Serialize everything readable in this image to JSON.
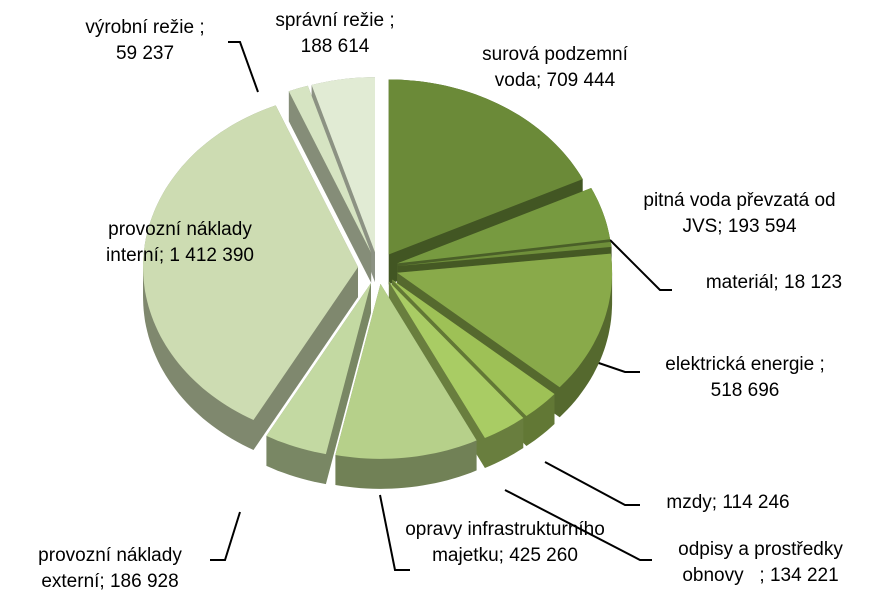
{
  "chart_data": {
    "type": "pie3d",
    "categories": [
      "surová podzemní voda;",
      "pitná voda převzatá od JVS;",
      "materiál;",
      "elektrická energie ;",
      "mzdy;",
      "odpisy a prostředky obnovy   ;",
      "opravy infrastrukturního majetku;",
      "provozní náklady externí;",
      "provozní náklady interní;",
      "výrobní režie ;",
      "správní režie ;"
    ],
    "values": [
      709444,
      193594,
      18123,
      518696,
      114246,
      134221,
      425260,
      186928,
      1412390,
      59237,
      188614
    ],
    "value_labels": [
      "709 444",
      "193 594",
      "18 123",
      "518 696",
      "114 246",
      "134 221",
      "425 260",
      "186 928",
      "1 412 390",
      "59 237",
      "188 614"
    ],
    "colors": [
      "#6b8a38",
      "#779a40",
      "#6f8f3a",
      "#89aa4a",
      "#9ec156",
      "#a9cc64",
      "#b6d08a",
      "#c3d9a2",
      "#cddcb2",
      "#d6e4c2",
      "#e1ebd4"
    ]
  }
}
